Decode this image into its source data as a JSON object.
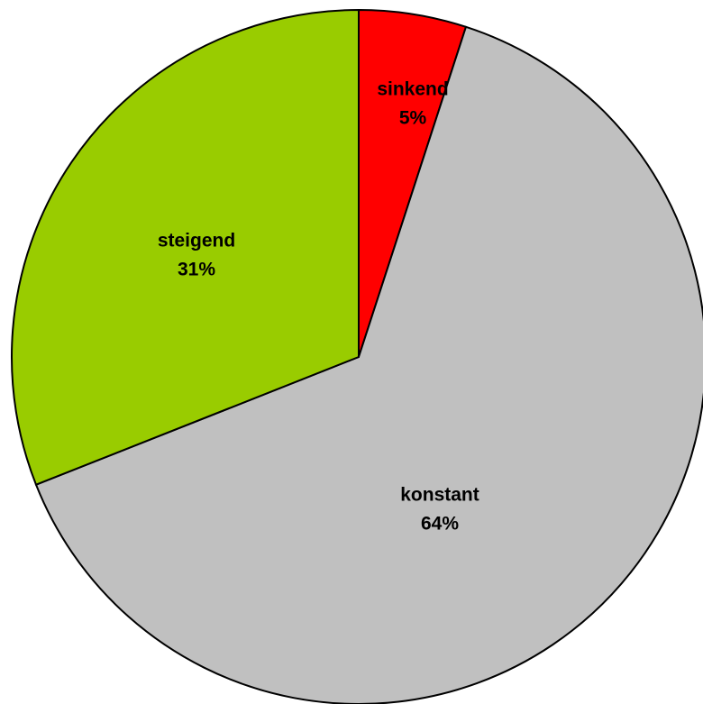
{
  "chart_data": {
    "type": "pie",
    "categories": [
      "sinkend",
      "konstant",
      "steigend"
    ],
    "values": [
      5,
      64,
      31
    ],
    "value_labels": [
      "5%",
      "64%",
      "31%"
    ],
    "colors": [
      "#ff0000",
      "#c0c0c0",
      "#99cc00"
    ]
  }
}
